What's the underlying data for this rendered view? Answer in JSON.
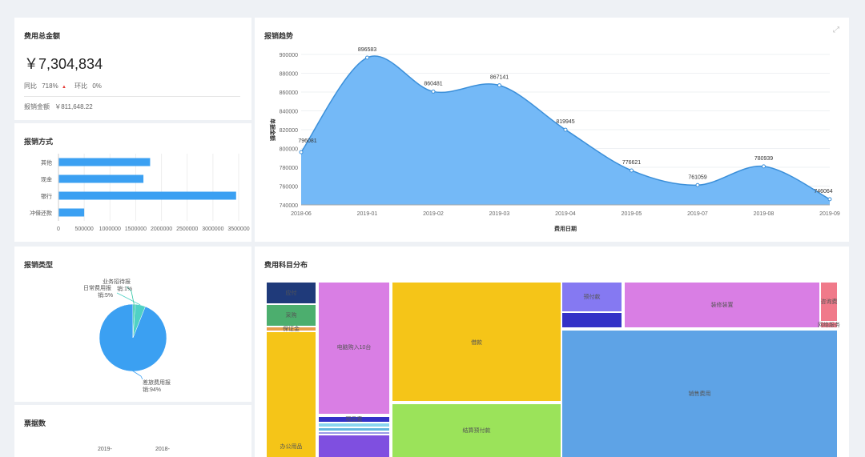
{
  "total_card": {
    "title": "费用总金额",
    "amount": "￥7,304,834",
    "yoy_label": "同比",
    "yoy_value": "718%",
    "yoy_arrow": "▲",
    "mom_label": "环比",
    "mom_value": "0%",
    "reimb_label": "报销金额",
    "reimb_value": "￥811,648.22"
  },
  "method_card": {
    "title": "报销方式",
    "chart_data": {
      "type": "bar",
      "orientation": "horizontal",
      "categories": [
        "冲借还款",
        "银行",
        "现金",
        "其他"
      ],
      "values": [
        500000,
        3450000,
        1650000,
        1780000
      ],
      "xlim": [
        0,
        3500000
      ],
      "xticks": [
        "0",
        "500000",
        "1000000",
        "1500000",
        "2000000",
        "2500000",
        "3000000",
        "3500000"
      ],
      "color": "#3ba0f2"
    }
  },
  "trend_card": {
    "title": "报销趋势",
    "chart_data": {
      "type": "area",
      "x": [
        "2018-06",
        "2019-01",
        "2019-02",
        "2019-03",
        "2019-04",
        "2019-05",
        "2019-07",
        "2019-08",
        "2019-09"
      ],
      "values": [
        796081,
        896583,
        860481,
        867141,
        819945,
        776621,
        761059,
        780939,
        746064
      ],
      "ylim": [
        740000,
        900000
      ],
      "yticks": [
        "740000",
        "760000",
        "780000",
        "800000",
        "820000",
        "840000",
        "860000",
        "880000",
        "900000"
      ],
      "xlabel": "费用日期",
      "ylabel": "单据金额",
      "fill": "#74b9f7",
      "stroke": "#3b8fd9"
    }
  },
  "type_card": {
    "title": "报销类型",
    "chart_data": {
      "type": "pie",
      "slices": [
        {
          "label": "差旅费用报销:94%",
          "value": 94,
          "color": "#3ba0f2"
        },
        {
          "label": "日常费用报销:5%",
          "value": 5,
          "color": "#4fd1c5"
        },
        {
          "label": "业务招待报销:1%",
          "value": 1,
          "color": "#2ec7a5"
        }
      ],
      "label_lines": {
        "travel": [
          "差旅费用报",
          "销:94%"
        ],
        "daily": [
          "日常费用报",
          "销:5%"
        ],
        "biz": [
          "业务招待报",
          "销:1%"
        ]
      }
    }
  },
  "ticket_card": {
    "title": "票据数",
    "labels": [
      "2019-",
      "2018-"
    ]
  },
  "subject_card": {
    "title": "费用科目分布",
    "cells": [
      {
        "label": "应付",
        "color": "#1f3a7a"
      },
      {
        "label": "采购",
        "color": "#4cae6e"
      },
      {
        "label": "保证金",
        "color": "#e89f4c"
      },
      {
        "label": "办公用品",
        "color": "#f5c518"
      },
      {
        "label": "电脑购入10台",
        "color": "#d97ee4"
      },
      {
        "label": "借款",
        "color": "#f5c518"
      },
      {
        "label": "结算预付款",
        "color": "#9be35a"
      },
      {
        "label": "预付款",
        "color": "#8579f2"
      },
      {
        "label": "",
        "color": "#3431c7"
      },
      {
        "label": "装修装置",
        "color": "#d97ee4"
      },
      {
        "label": "咨询费",
        "color": "#f07a8a"
      },
      {
        "label": "网络服务",
        "color": "#f07a8a"
      },
      {
        "label": "销售费用",
        "color": "#5ea3e6"
      },
      {
        "label": "项目费",
        "color": "#3431c7"
      },
      {
        "label": "",
        "color": "#8bd6f0"
      },
      {
        "label": "",
        "color": "#62b7e0"
      },
      {
        "label": "",
        "color": "#9b9be8"
      },
      {
        "label": "",
        "color": "#7f4fe0"
      }
    ]
  }
}
